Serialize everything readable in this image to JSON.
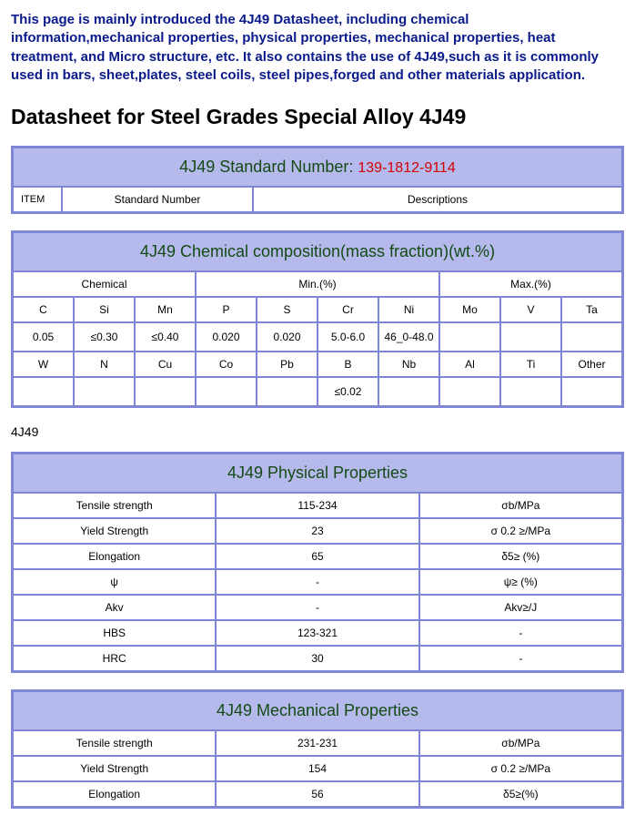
{
  "intro": "This page is mainly introduced the 4J49 Datasheet, including chemical information,mechanical properties, physical properties, mechanical properties, heat treatment, and Micro structure, etc. It also contains the use of 4J49,such as it is commonly used in bars, sheet,plates, steel coils, steel pipes,forged and other materials application.",
  "heading": "Datasheet for Steel Grades Special Alloy 4J49",
  "subtitle": "4J49",
  "colors": {
    "header_bg": "#b6b9ec",
    "border": "#8086d6",
    "header_text": "#144b14",
    "stdnum": "#d40000",
    "intro_text": "#0a1a8a"
  },
  "std": {
    "title": "4J49 Standard Number:",
    "number": "139-1812-9114",
    "colItem": "ITEM",
    "colStd": "Standard Number",
    "colDesc": "Descriptions"
  },
  "chem": {
    "title": "4J49 Chemical composition(mass fraction)(wt.%)",
    "h_chem": "Chemical",
    "h_min": "Min.(%)",
    "h_max": "Max.(%)",
    "row1h": [
      "C",
      "Si",
      "Mn",
      "P",
      "S",
      "Cr",
      "Ni",
      "Mo",
      "V",
      "Ta"
    ],
    "row1v": [
      "0.05",
      "≤0.30",
      "≤0.40",
      "0.020",
      "0.020",
      "5.0-6.0",
      "46_0-48.0",
      "",
      "",
      ""
    ],
    "row2h": [
      "W",
      "N",
      "Cu",
      "Co",
      "Pb",
      "B",
      "Nb",
      "Al",
      "Ti",
      "Other"
    ],
    "row2v": [
      "",
      "",
      "",
      "",
      "",
      "≤0.02",
      "",
      "",
      "",
      ""
    ]
  },
  "phys": {
    "title": "4J49 Physical Properties",
    "rows": [
      [
        "Tensile strength",
        "115-234",
        "σb/MPa"
      ],
      [
        "Yield Strength",
        "23",
        "σ 0.2 ≥/MPa"
      ],
      [
        "Elongation",
        "65",
        "δ5≥ (%)"
      ],
      [
        "ψ",
        "-",
        "ψ≥ (%)"
      ],
      [
        "Akv",
        "-",
        "Akv≥/J"
      ],
      [
        "HBS",
        "123-321",
        "-"
      ],
      [
        "HRC",
        "30",
        "-"
      ]
    ]
  },
  "mech": {
    "title": "4J49 Mechanical Properties",
    "rows": [
      [
        "Tensile strength",
        "231-231",
        "σb/MPa"
      ],
      [
        "Yield Strength",
        "154",
        "σ 0.2 ≥/MPa"
      ],
      [
        "Elongation",
        "56",
        "δ5≥(%)"
      ]
    ]
  }
}
